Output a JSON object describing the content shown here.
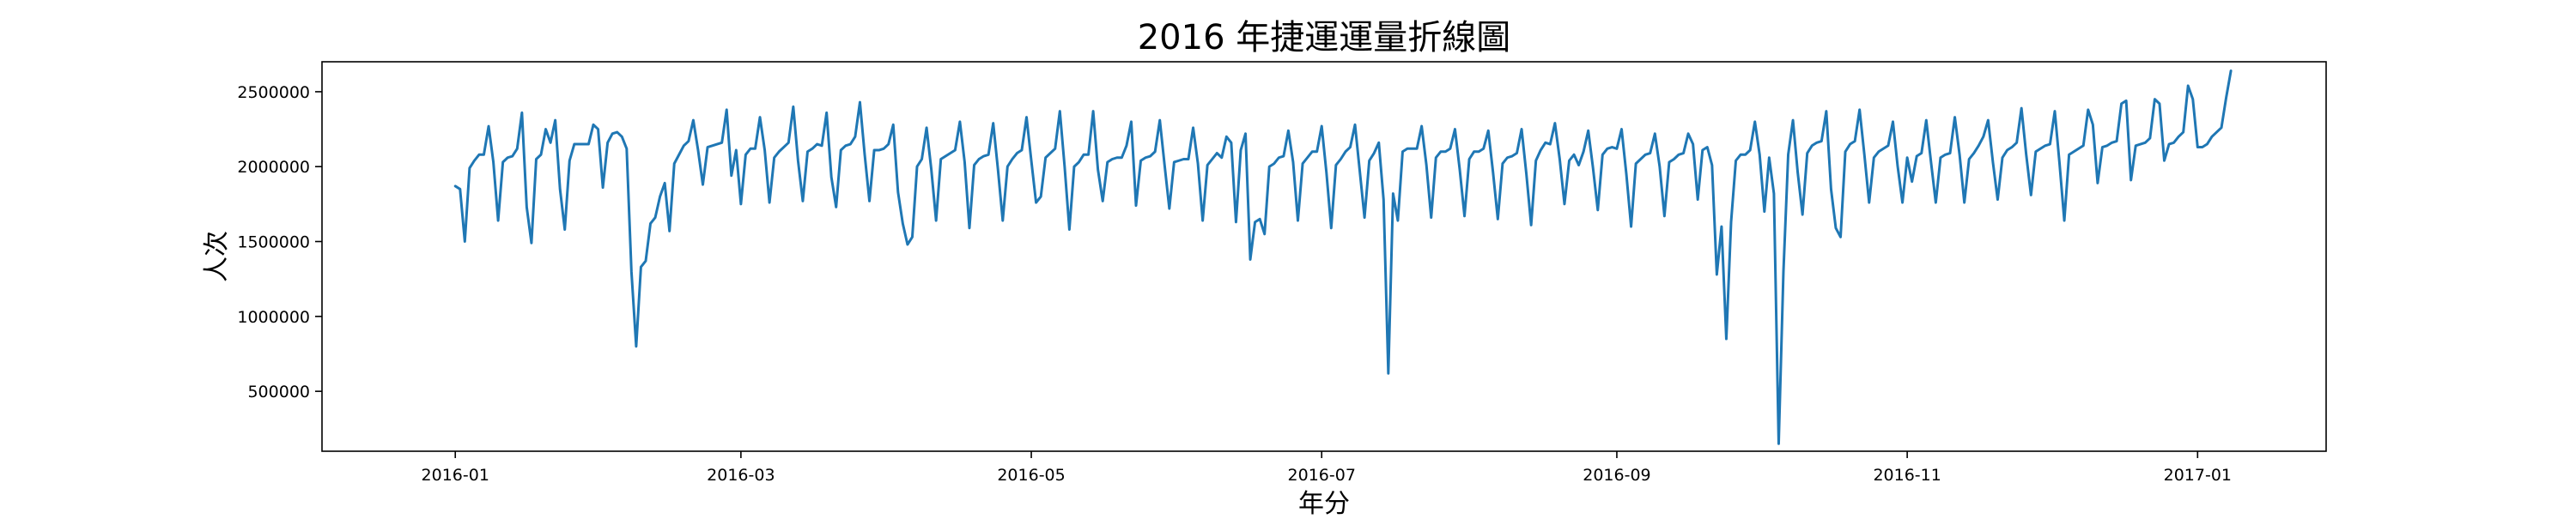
{
  "chart_data": {
    "type": "line",
    "title": "2016 年捷運運量折線圖",
    "xlabel": "年分",
    "ylabel": "人次",
    "line_color": "#1f77b4",
    "grid": false,
    "legend": "none",
    "xlim": [
      "2015-12-04",
      "2017-01-28"
    ],
    "ylim": [
      100000,
      2700000
    ],
    "x_ticks": [
      "2016-01",
      "2016-03",
      "2016-05",
      "2016-07",
      "2016-09",
      "2016-11",
      "2017-01"
    ],
    "y_ticks": [
      500000,
      1000000,
      1500000,
      2000000,
      2500000
    ],
    "y_tick_labels": [
      "500000",
      "1000000",
      "1500000",
      "2000000",
      "2500000"
    ],
    "series": [
      {
        "start_date": "2016-01-01",
        "values": [
          1870000,
          1850000,
          1500000,
          1990000,
          2040000,
          2080000,
          2080000,
          2270000,
          2030000,
          1640000,
          2030000,
          2060000,
          2070000,
          2120000,
          2360000,
          1730000,
          1490000,
          2050000,
          2080000,
          2250000,
          2160000,
          2310000,
          1850000,
          1580000,
          2040000,
          2150000,
          2150000,
          2150000,
          2150000,
          2280000,
          2250000,
          1860000,
          2160000,
          2220000,
          2230000,
          2200000,
          2120000,
          1300000,
          800000,
          1330000,
          1370000,
          1620000,
          1660000,
          1800000,
          1890000,
          1570000,
          2020000,
          2080000,
          2140000,
          2170000,
          2310000,
          2110000,
          1880000,
          2130000,
          2140000,
          2150000,
          2160000,
          2380000,
          1940000,
          2110000,
          1750000,
          2080000,
          2120000,
          2120000,
          2330000,
          2110000,
          1760000,
          2060000,
          2100000,
          2130000,
          2160000,
          2400000,
          2040000,
          1770000,
          2100000,
          2120000,
          2150000,
          2140000,
          2360000,
          1930000,
          1730000,
          2110000,
          2140000,
          2150000,
          2200000,
          2430000,
          2080000,
          1770000,
          2110000,
          2110000,
          2120000,
          2150000,
          2280000,
          1830000,
          1620000,
          1480000,
          1530000,
          2000000,
          2050000,
          2260000,
          1980000,
          1640000,
          2050000,
          2070000,
          2090000,
          2110000,
          2300000,
          2030000,
          1590000,
          2010000,
          2050000,
          2070000,
          2080000,
          2290000,
          1980000,
          1640000,
          2000000,
          2050000,
          2090000,
          2110000,
          2330000,
          2040000,
          1760000,
          1800000,
          2060000,
          2090000,
          2120000,
          2370000,
          2000000,
          1580000,
          2000000,
          2030000,
          2080000,
          2080000,
          2370000,
          1980000,
          1770000,
          2030000,
          2050000,
          2060000,
          2060000,
          2140000,
          2300000,
          1740000,
          2040000,
          2060000,
          2070000,
          2100000,
          2310000,
          2010000,
          1720000,
          2030000,
          2040000,
          2050000,
          2050000,
          2260000,
          2020000,
          1640000,
          2010000,
          2050000,
          2090000,
          2060000,
          2200000,
          2160000,
          1630000,
          2110000,
          2220000,
          1380000,
          1630000,
          1650000,
          1550000,
          2000000,
          2020000,
          2060000,
          2070000,
          2240000,
          2030000,
          1640000,
          2020000,
          2060000,
          2100000,
          2100000,
          2270000,
          1960000,
          1590000,
          2010000,
          2050000,
          2100000,
          2130000,
          2280000,
          1970000,
          1660000,
          2040000,
          2090000,
          2160000,
          1780000,
          620000,
          1820000,
          1640000,
          2100000,
          2120000,
          2120000,
          2120000,
          2270000,
          2010000,
          1660000,
          2060000,
          2100000,
          2100000,
          2120000,
          2250000,
          1980000,
          1670000,
          2050000,
          2100000,
          2100000,
          2120000,
          2240000,
          1960000,
          1650000,
          2020000,
          2060000,
          2070000,
          2090000,
          2250000,
          1950000,
          1610000,
          2040000,
          2110000,
          2160000,
          2150000,
          2290000,
          2050000,
          1750000,
          2040000,
          2080000,
          2010000,
          2100000,
          2240000,
          1990000,
          1710000,
          2080000,
          2120000,
          2130000,
          2120000,
          2250000,
          1950000,
          1600000,
          2020000,
          2050000,
          2080000,
          2090000,
          2220000,
          2000000,
          1670000,
          2030000,
          2050000,
          2080000,
          2090000,
          2220000,
          2150000,
          1780000,
          2110000,
          2130000,
          2010000,
          1280000,
          1600000,
          850000,
          1630000,
          2040000,
          2080000,
          2080000,
          2110000,
          2300000,
          2080000,
          1700000,
          2060000,
          1820000,
          150000,
          1300000,
          2080000,
          2310000,
          1960000,
          1680000,
          2090000,
          2140000,
          2160000,
          2170000,
          2370000,
          1850000,
          1590000,
          1530000,
          2100000,
          2150000,
          2170000,
          2380000,
          2080000,
          1760000,
          2060000,
          2100000,
          2120000,
          2140000,
          2300000,
          2000000,
          1760000,
          2060000,
          1900000,
          2070000,
          2090000,
          2310000,
          2030000,
          1760000,
          2060000,
          2080000,
          2090000,
          2330000,
          2080000,
          1760000,
          2050000,
          2090000,
          2140000,
          2200000,
          2310000,
          2030000,
          1780000,
          2060000,
          2110000,
          2130000,
          2160000,
          2390000,
          2080000,
          1810000,
          2100000,
          2120000,
          2140000,
          2150000,
          2370000,
          2020000,
          1640000,
          2080000,
          2100000,
          2120000,
          2140000,
          2380000,
          2280000,
          1890000,
          2130000,
          2140000,
          2160000,
          2170000,
          2420000,
          2440000,
          1910000,
          2140000,
          2150000,
          2160000,
          2190000,
          2450000,
          2420000,
          2040000,
          2150000,
          2160000,
          2200000,
          2230000,
          2540000,
          2450000,
          2130000,
          2130000,
          2150000,
          2200000,
          2230000,
          2260000,
          2460000,
          2640000
        ]
      }
    ]
  }
}
